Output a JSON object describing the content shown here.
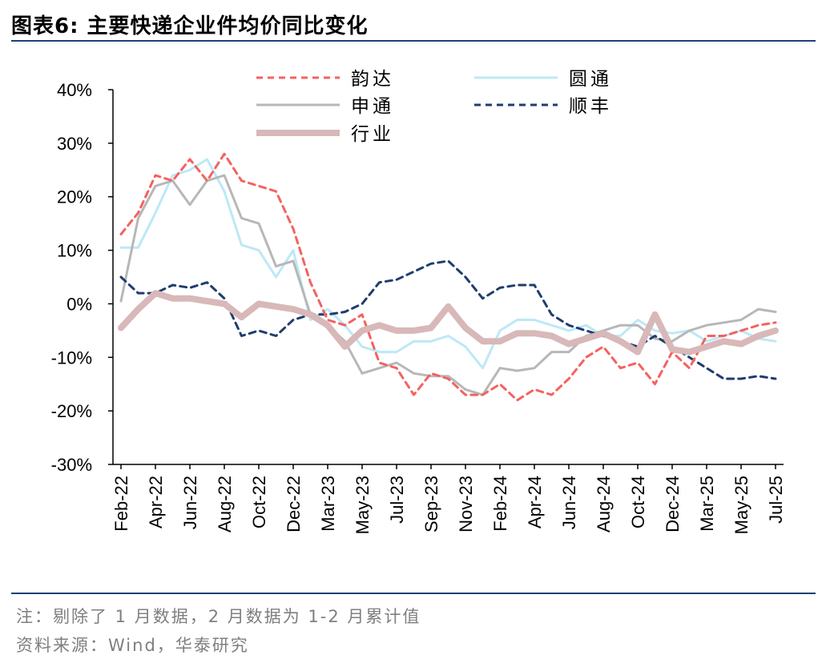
{
  "header": {
    "title": "图表6:   主要快递企业件均价同比变化"
  },
  "footer": {
    "note": "注：剔除了 1 月数据，2 月数据为 1-2 月累计值",
    "source": "资料来源：Wind，华泰研究"
  },
  "chart_data": {
    "type": "line",
    "title": "",
    "xlabel": "",
    "ylabel": "",
    "ylim": [
      -30,
      40
    ],
    "yticks": [
      -30,
      -20,
      -10,
      0,
      10,
      20,
      30,
      40
    ],
    "ytick_labels": [
      "-30%",
      "-20%",
      "-10%",
      "0%",
      "10%",
      "20%",
      "30%",
      "40%"
    ],
    "grid": false,
    "legend_position": "top",
    "x_labels": [
      "Feb-22",
      "Apr-22",
      "Jun-22",
      "Aug-22",
      "Oct-22",
      "Dec-22",
      "Mar-23",
      "May-23",
      "Jul-23",
      "Sep-23",
      "Nov-23",
      "Feb-24",
      "Apr-24",
      "Jun-24",
      "Aug-24",
      "Oct-24",
      "Dec-24",
      "Mar-25",
      "May-25",
      "Jul-25"
    ],
    "x": [
      "Feb-22",
      "Mar-22",
      "Apr-22",
      "May-22",
      "Jun-22",
      "Jul-22",
      "Aug-22",
      "Sep-22",
      "Oct-22",
      "Nov-22",
      "Dec-22",
      "Feb-23",
      "Mar-23",
      "Apr-23",
      "May-23",
      "Jun-23",
      "Jul-23",
      "Aug-23",
      "Sep-23",
      "Oct-23",
      "Nov-23",
      "Dec-23",
      "Feb-24",
      "Mar-24",
      "Apr-24",
      "May-24",
      "Jun-24",
      "Jul-24",
      "Aug-24",
      "Sep-24",
      "Oct-24",
      "Nov-24",
      "Dec-24",
      "Feb-25",
      "Mar-25",
      "Apr-25",
      "May-25",
      "Jun-25",
      "Jul-25"
    ],
    "series": [
      {
        "name": "韵达",
        "color": "#f4625f",
        "dash": "dashed",
        "values": [
          13,
          17,
          24,
          23,
          27,
          23,
          28,
          23,
          22,
          21,
          14,
          4,
          -3,
          -4,
          -2,
          -11,
          -12,
          -17,
          -13,
          -14,
          -17,
          -17,
          -15,
          -18,
          -16,
          -17,
          -14,
          -10,
          -8,
          -12,
          -11,
          -15,
          -9,
          -12,
          -6,
          -6,
          -5,
          -4,
          -3.5
        ]
      },
      {
        "name": "圆通",
        "color": "#bde8f7",
        "dash": "solid",
        "values": [
          10.5,
          10.5,
          17,
          24,
          25,
          27,
          21,
          11,
          10,
          5,
          10,
          -3,
          -1,
          -4,
          -8,
          -9,
          -9,
          -7,
          -7,
          -6,
          -8,
          -12,
          -5,
          -3,
          -3,
          -4,
          -5,
          -4,
          -6,
          -6,
          -3,
          -5,
          -5.5,
          -5,
          -7,
          -6,
          -5,
          -6.5,
          -7
        ]
      },
      {
        "name": "申通",
        "color": "#b7b7b7",
        "dash": "solid",
        "values": [
          0.5,
          16,
          22,
          23,
          18.5,
          23,
          24,
          16,
          15,
          7,
          8,
          -2,
          -4,
          -7,
          -13,
          -12,
          -11,
          -13,
          -13.5,
          -13.5,
          -16,
          -17,
          -12,
          -12.5,
          -12,
          -9,
          -9,
          -6,
          -5,
          -4,
          -4,
          -6.5,
          -7,
          -5,
          -4,
          -3.5,
          -3,
          -1,
          -1.5
        ]
      },
      {
        "name": "顺丰",
        "color": "#1f3d6e",
        "dash": "dashed",
        "values": [
          5,
          2,
          2,
          3.5,
          3,
          4,
          1,
          -6,
          -5,
          -6,
          -3,
          -2,
          -2,
          -1.5,
          0,
          4,
          4.5,
          6,
          7.5,
          8,
          5,
          1,
          3,
          3.5,
          3.5,
          -2,
          -4,
          -5,
          -6,
          -7,
          -8,
          -6,
          -8,
          -10,
          -12,
          -14,
          -14,
          -13.5,
          -14
        ]
      },
      {
        "name": "行业",
        "color": "#d8b8b8",
        "dash": "thick",
        "values": [
          -4.5,
          -1,
          2,
          1,
          1,
          0.5,
          0,
          -2.5,
          0,
          -0.5,
          -1,
          -2,
          -4,
          -8,
          -5,
          -4,
          -5,
          -5,
          -4.5,
          -0.5,
          -4.5,
          -7,
          -7,
          -5.5,
          -5.5,
          -6,
          -7.5,
          -6.5,
          -5.5,
          -7,
          -9,
          -2,
          -8.5,
          -9,
          -8,
          -7,
          -7.5,
          -6,
          -5
        ]
      }
    ]
  }
}
